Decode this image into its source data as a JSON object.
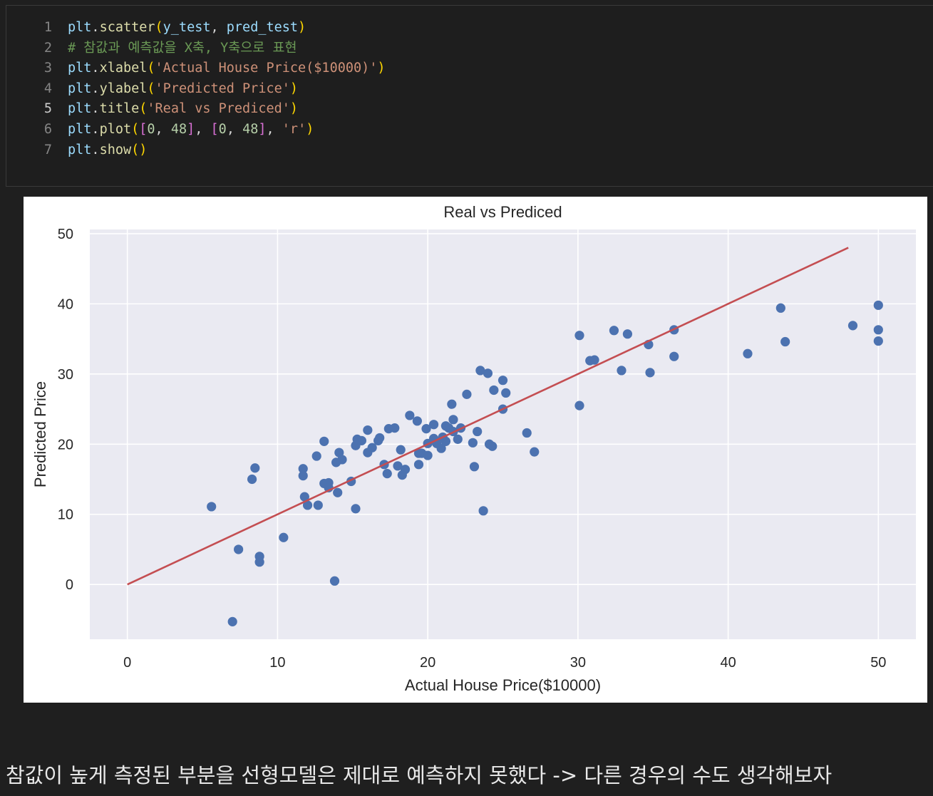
{
  "code_cell": {
    "lines": [
      {
        "number": "1",
        "tokens": [
          [
            "plt",
            "var"
          ],
          [
            ".",
            "pun"
          ],
          [
            "scatter",
            "fn"
          ],
          [
            "(",
            "p1"
          ],
          [
            "y_test",
            "var"
          ],
          [
            ", ",
            "pun"
          ],
          [
            "pred_test",
            "var"
          ],
          [
            ")",
            "p1"
          ]
        ]
      },
      {
        "number": "2",
        "tokens": [
          [
            "# 참값과 예측값을 X축, Y축으로 표현",
            "cmt"
          ]
        ]
      },
      {
        "number": "3",
        "tokens": [
          [
            "plt",
            "var"
          ],
          [
            ".",
            "pun"
          ],
          [
            "xlabel",
            "fn"
          ],
          [
            "(",
            "p1"
          ],
          [
            "'Actual House Price($10000)'",
            "str"
          ],
          [
            ")",
            "p1"
          ]
        ]
      },
      {
        "number": "4",
        "tokens": [
          [
            "plt",
            "var"
          ],
          [
            ".",
            "pun"
          ],
          [
            "ylabel",
            "fn"
          ],
          [
            "(",
            "p1"
          ],
          [
            "'Predicted Price'",
            "str"
          ],
          [
            ")",
            "p1"
          ]
        ]
      },
      {
        "number": "5",
        "tokens": [
          [
            "plt",
            "var"
          ],
          [
            ".",
            "pun"
          ],
          [
            "title",
            "fn"
          ],
          [
            "(",
            "p1"
          ],
          [
            "'Real vs Prediced'",
            "str"
          ],
          [
            ")",
            "p1"
          ]
        ]
      },
      {
        "number": "6",
        "tokens": [
          [
            "plt",
            "var"
          ],
          [
            ".",
            "pun"
          ],
          [
            "plot",
            "fn"
          ],
          [
            "(",
            "p1"
          ],
          [
            "[",
            "p2"
          ],
          [
            "0",
            "num"
          ],
          [
            ", ",
            "pun"
          ],
          [
            "48",
            "num"
          ],
          [
            "]",
            "p2"
          ],
          [
            ", ",
            "pun"
          ],
          [
            "[",
            "p2"
          ],
          [
            "0",
            "num"
          ],
          [
            ", ",
            "pun"
          ],
          [
            "48",
            "num"
          ],
          [
            "]",
            "p2"
          ],
          [
            ", ",
            "pun"
          ],
          [
            "'r'",
            "str"
          ],
          [
            ")",
            "p1"
          ]
        ]
      },
      {
        "number": "7",
        "tokens": [
          [
            "plt",
            "var"
          ],
          [
            ".",
            "pun"
          ],
          [
            "show",
            "fn"
          ],
          [
            "()",
            "p1"
          ]
        ]
      }
    ],
    "active_line": "5"
  },
  "chart_data": {
    "type": "scatter",
    "title": "Real vs Prediced",
    "xlabel": "Actual House Price($10000)",
    "ylabel": "Predicted Price",
    "xlim": [
      -2.5,
      52.5
    ],
    "ylim": [
      -7.8,
      50.6
    ],
    "xticks": [
      0,
      10,
      20,
      30,
      40,
      50
    ],
    "yticks": [
      0,
      10,
      20,
      30,
      40,
      50
    ],
    "grid": true,
    "colors": {
      "points": "#4c72b0",
      "line": "#c44e52",
      "background": "#eaeaf2",
      "grid": "#ffffff"
    },
    "reference_line": {
      "x": [
        0,
        48
      ],
      "y": [
        0,
        48
      ]
    },
    "points": [
      [
        5.6,
        11.1
      ],
      [
        7.0,
        -5.3
      ],
      [
        7.4,
        5.0
      ],
      [
        8.3,
        15.0
      ],
      [
        8.5,
        16.6
      ],
      [
        8.8,
        4.0
      ],
      [
        8.8,
        3.2
      ],
      [
        10.4,
        6.7
      ],
      [
        11.7,
        16.5
      ],
      [
        11.7,
        15.5
      ],
      [
        11.8,
        12.5
      ],
      [
        12.0,
        11.3
      ],
      [
        12.7,
        11.3
      ],
      [
        12.6,
        18.3
      ],
      [
        13.1,
        20.4
      ],
      [
        13.1,
        14.4
      ],
      [
        13.4,
        14.5
      ],
      [
        13.4,
        13.8
      ],
      [
        13.8,
        0.5
      ],
      [
        13.9,
        17.4
      ],
      [
        14.0,
        13.1
      ],
      [
        14.1,
        18.8
      ],
      [
        14.3,
        17.8
      ],
      [
        14.9,
        14.7
      ],
      [
        15.2,
        10.8
      ],
      [
        15.2,
        19.8
      ],
      [
        15.3,
        20.7
      ],
      [
        15.6,
        20.5
      ],
      [
        16.0,
        22.0
      ],
      [
        16.0,
        18.8
      ],
      [
        16.3,
        19.5
      ],
      [
        16.7,
        20.5
      ],
      [
        16.8,
        20.9
      ],
      [
        17.1,
        17.1
      ],
      [
        17.3,
        15.8
      ],
      [
        17.4,
        22.2
      ],
      [
        17.8,
        22.3
      ],
      [
        18.0,
        16.9
      ],
      [
        18.2,
        19.2
      ],
      [
        18.3,
        15.6
      ],
      [
        18.5,
        16.4
      ],
      [
        18.8,
        24.1
      ],
      [
        19.3,
        23.3
      ],
      [
        19.4,
        17.1
      ],
      [
        19.4,
        18.7
      ],
      [
        19.6,
        18.7
      ],
      [
        19.9,
        22.2
      ],
      [
        20.0,
        18.4
      ],
      [
        20.0,
        20.1
      ],
      [
        20.4,
        22.8
      ],
      [
        20.4,
        20.8
      ],
      [
        20.6,
        20.1
      ],
      [
        20.9,
        19.4
      ],
      [
        21.0,
        21.0
      ],
      [
        21.2,
        22.6
      ],
      [
        21.2,
        20.4
      ],
      [
        21.4,
        22.3
      ],
      [
        21.6,
        25.7
      ],
      [
        21.7,
        21.8
      ],
      [
        21.7,
        23.5
      ],
      [
        22.0,
        20.7
      ],
      [
        22.2,
        22.3
      ],
      [
        22.6,
        27.1
      ],
      [
        23.0,
        20.2
      ],
      [
        23.1,
        16.8
      ],
      [
        23.3,
        21.8
      ],
      [
        23.5,
        30.5
      ],
      [
        23.7,
        10.5
      ],
      [
        24.0,
        30.1
      ],
      [
        24.1,
        20.0
      ],
      [
        24.3,
        19.7
      ],
      [
        24.4,
        27.7
      ],
      [
        25.0,
        25.0
      ],
      [
        25.0,
        29.1
      ],
      [
        25.2,
        27.3
      ],
      [
        26.6,
        21.6
      ],
      [
        27.1,
        18.9
      ],
      [
        30.1,
        35.5
      ],
      [
        30.1,
        25.5
      ],
      [
        30.8,
        31.9
      ],
      [
        31.1,
        32.0
      ],
      [
        32.4,
        36.2
      ],
      [
        32.9,
        30.5
      ],
      [
        33.3,
        35.7
      ],
      [
        34.7,
        34.2
      ],
      [
        34.8,
        30.2
      ],
      [
        36.4,
        36.3
      ],
      [
        36.4,
        32.5
      ],
      [
        41.3,
        32.9
      ],
      [
        43.5,
        39.4
      ],
      [
        43.8,
        34.6
      ],
      [
        48.3,
        36.9
      ],
      [
        50.0,
        39.8
      ],
      [
        50.0,
        36.3
      ],
      [
        50.0,
        34.7
      ]
    ]
  },
  "markdown": {
    "text": "참값이 높게 측정된 부분을 선형모델은 제대로 예측하지 못했다 -> 다른 경우의 수도 생각해보자"
  }
}
